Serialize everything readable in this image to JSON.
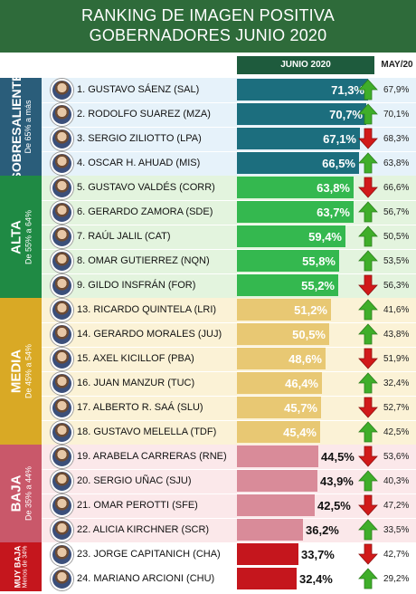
{
  "header": {
    "line1": "RANKING DE IMAGEN POSITIVA",
    "line2": "GOBERNADORES JUNIO 2020"
  },
  "columns": {
    "current": "JUNIO 2020",
    "previous": "MAY/20"
  },
  "sections": [
    {
      "title": "SOBRESALIENTE",
      "range": "De 65% a más",
      "tab_color": "#2a5d7a",
      "bg": "#e6f2fa",
      "bar": "#1c6e7e",
      "rows": [
        0,
        1,
        2,
        3
      ]
    },
    {
      "title": "ALTA",
      "range": "De 55% a 64%",
      "tab_color": "#1f8a44",
      "bg": "#e3f4de",
      "bar": "#34b84f",
      "rows": [
        4,
        5,
        6,
        7,
        8
      ]
    },
    {
      "title": "MEDIA",
      "range": "De 45% a 54%",
      "tab_color": "#d9a925",
      "bg": "#fbf2d6",
      "bar": "#e8c873",
      "rows": [
        9,
        10,
        11,
        12,
        13,
        14
      ]
    },
    {
      "title": "BAJA",
      "range": "De 35% a 44%",
      "tab_color": "#c9586a",
      "bg": "#fbe8ea",
      "bar": "#d98b99",
      "rows": [
        15,
        16,
        17,
        18
      ]
    },
    {
      "title": "MUY BAJA",
      "range": "Menos de 34%",
      "tab_color": "#c5161d",
      "bg": "#ffffff",
      "bar": "#c5161d",
      "rows": [
        19,
        20
      ]
    }
  ],
  "chart_data": {
    "type": "bar",
    "title": "RANKING DE IMAGEN POSITIVA GOBERNADORES JUNIO 2020",
    "categories": [
      "1. GUSTAVO SÁENZ (SAL)",
      "2. RODOLFO SUAREZ (MZA)",
      "3. SERGIO ZILIOTTO (LPA)",
      "4. OSCAR H. AHUAD  (MIS)",
      "5. GUSTAVO VALDÉS  (CORR)",
      "6. GERARDO ZAMORA (SDE)",
      "7. RAÚL JALIL (CAT)",
      "8. OMAR GUTIERREZ (NQN)",
      "9. GILDO INSFRÁN (FOR)",
      "13. RICARDO QUINTELA (LRI)",
      "14. GERARDO MORALES (JUJ)",
      "15. AXEL KICILLOF (PBA)",
      "16. JUAN MANZUR (TUC)",
      "17.  ALBERTO R. SAÁ (SLU)",
      "18. GUSTAVO MELELLA (TDF)",
      "19. ARABELA CARRERAS (RNE)",
      "20. SERGIO UÑAC (SJU)",
      "21. OMAR PEROTTI (SFE)",
      "22. ALICIA KIRCHNER (SCR)",
      "23. JORGE CAPITANICH (CHA)",
      "24. MARIANO ARCIONI (CHU)"
    ],
    "series": [
      {
        "name": "JUNIO 2020",
        "values": [
          71.3,
          70.7,
          67.1,
          66.5,
          63.8,
          63.7,
          59.4,
          55.8,
          55.2,
          51.2,
          50.5,
          48.6,
          46.4,
          45.7,
          45.4,
          44.5,
          43.9,
          42.5,
          36.2,
          33.7,
          32.4
        ]
      },
      {
        "name": "MAY/20",
        "values": [
          67.9,
          70.1,
          68.3,
          63.8,
          66.6,
          56.7,
          50.5,
          53.5,
          56.3,
          41.6,
          43.8,
          51.9,
          32.4,
          52.7,
          42.5,
          53.6,
          40.3,
          47.2,
          33.5,
          42.7,
          29.2
        ]
      }
    ],
    "labels_current": [
      "71,3%",
      "70,7%",
      "67,1%",
      "66,5%",
      "63,8%",
      "63,7%",
      "59,4%",
      "55,8%",
      "55,2%",
      "51,2%",
      "50,5%",
      "48,6%",
      "46,4%",
      "45,7%",
      "45,4%",
      "44,5%",
      "43,9%",
      "42,5%",
      "36,2%",
      "33,7%",
      "32,4%"
    ],
    "labels_previous": [
      "67,9%",
      "70,1%",
      "68,3%",
      "63,8%",
      "66,6%",
      "56,7%",
      "50,5%",
      "53,5%",
      "56,3%",
      "41,6%",
      "43,8%",
      "51,9%",
      "32,4%",
      "52,7%",
      "42,5%",
      "53,6%",
      "40,3%",
      "47,2%",
      "33,5%",
      "42,7%",
      "29,2%"
    ],
    "trend": [
      "up",
      "up",
      "down",
      "up",
      "down",
      "up",
      "up",
      "up",
      "down",
      "up",
      "up",
      "down",
      "up",
      "down",
      "up",
      "down",
      "up",
      "down",
      "up",
      "down",
      "up"
    ],
    "xlim": [
      0,
      75
    ]
  },
  "colors": {
    "up": "#3fae2a",
    "down": "#d11a1a",
    "header": "#2e6b3a"
  }
}
